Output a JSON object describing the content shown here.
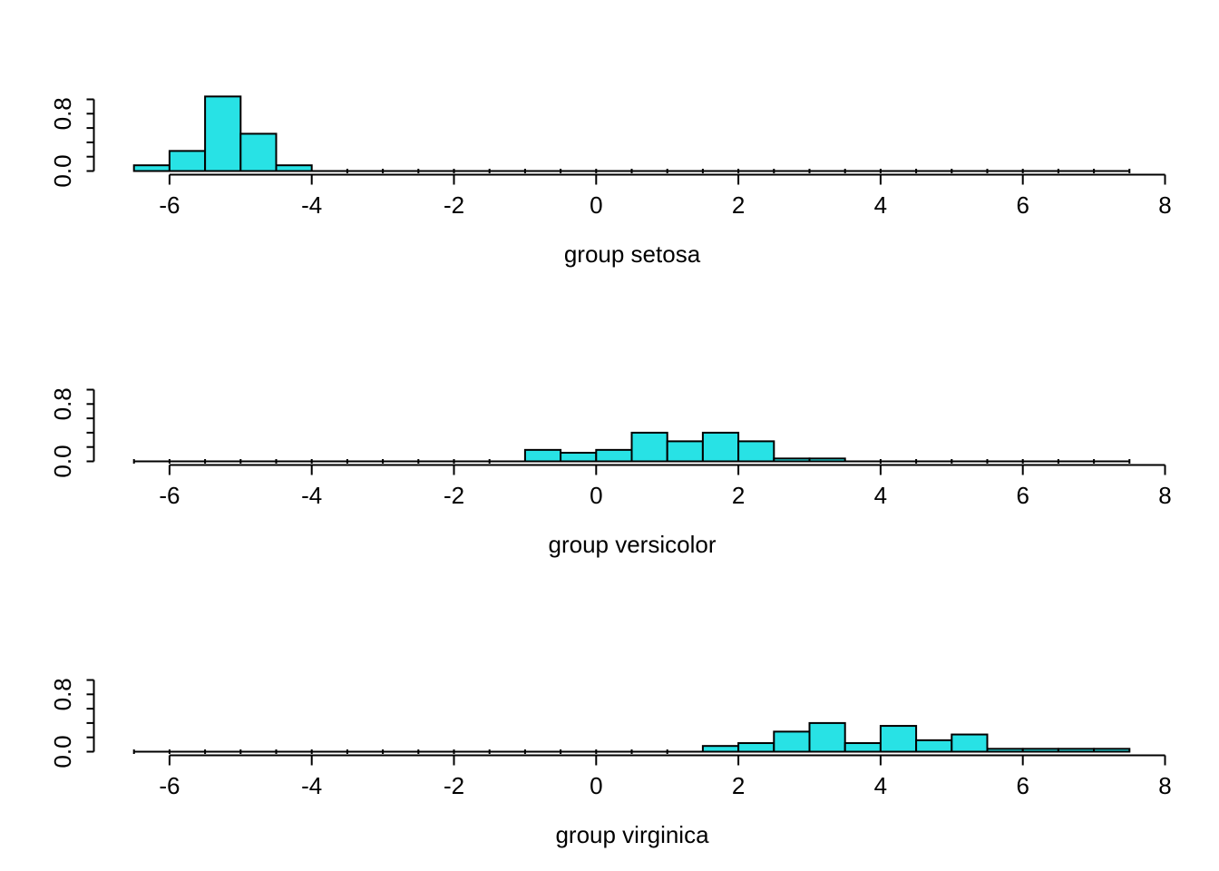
{
  "figure": {
    "background": "#ffffff",
    "bar_fill": "#28E2E5",
    "bar_stroke": "#000000",
    "axis_color": "#000000",
    "text_color": "#000000"
  },
  "chart_data": {
    "type": "bar",
    "subtype": "histogram-small-multiples",
    "bin_width": 0.5,
    "x_axis": {
      "tick_values": [
        -6,
        -4,
        -2,
        0,
        2,
        4,
        6,
        8
      ],
      "tick_labels": [
        "-6",
        "-4",
        "-2",
        "0",
        "2",
        "4",
        "6",
        "8"
      ],
      "break_range": [
        -6.5,
        7.5
      ],
      "xlim": [
        -7.06,
        8.06
      ]
    },
    "y_axis": {
      "tick_values": [
        0,
        0.2,
        0.4,
        0.6,
        0.8,
        1.0
      ],
      "labeled": [
        {
          "value": 0.0,
          "label": "0.0"
        },
        {
          "value": 0.8,
          "label": "0.8"
        }
      ],
      "ylim": [
        0,
        1.04
      ]
    },
    "panels": [
      {
        "group": "setosa",
        "xlabel": "group setosa",
        "bin_start": -6.5,
        "densities": [
          0.08,
          0.28,
          1.04,
          0.52,
          0.08
        ]
      },
      {
        "group": "versicolor",
        "xlabel": "group versicolor",
        "bin_start": -1.0,
        "densities": [
          0.16,
          0.12,
          0.16,
          0.4,
          0.28,
          0.4,
          0.28,
          0.04,
          0.04
        ]
      },
      {
        "group": "virginica",
        "xlabel": "group virginica",
        "bin_start": 1.5,
        "densities": [
          0.08,
          0.12,
          0.28,
          0.4,
          0.12,
          0.36,
          0.16,
          0.24,
          0.04,
          0.04,
          0.04,
          0.04
        ]
      }
    ]
  }
}
